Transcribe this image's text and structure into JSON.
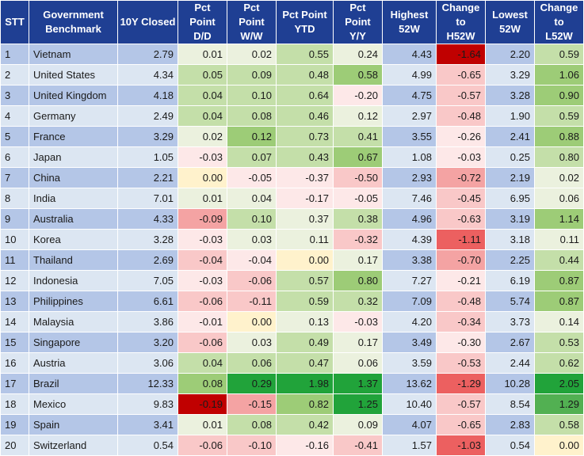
{
  "headers": {
    "stt": "STT",
    "benchmark_line1": "Government",
    "benchmark_line2": "Benchmark",
    "closed": "10Y Closed",
    "dd_line1": "Pct",
    "dd_line2": "Point",
    "dd_line3": "D/D",
    "ww_line1": "Pct",
    "ww_line2": "Point",
    "ww_line3": "W/W",
    "ytd_line1": "Pct Point",
    "ytd_line2": "YTD",
    "yy_line1": "Pct",
    "yy_line2": "Point",
    "yy_line3": "Y/Y",
    "h52_line1": "Highest",
    "h52_line2": "52W",
    "ch52_line1": "Change",
    "ch52_line2": "to",
    "ch52_line3": "H52W",
    "l52_line1": "Lowest",
    "l52_line2": "52W",
    "cl52_line1": "Change to",
    "cl52_line2": "L52W"
  },
  "rows": [
    {
      "stt": "1",
      "name": "Vietnam",
      "closed": "2.79",
      "dd": "0.01",
      "ww": "0.02",
      "ytd": "0.55",
      "yy": "0.24",
      "h52": "4.43",
      "ch52": "-1.64",
      "l52": "2.20",
      "cl52": "0.59"
    },
    {
      "stt": "2",
      "name": "United States",
      "closed": "4.34",
      "dd": "0.05",
      "ww": "0.09",
      "ytd": "0.48",
      "yy": "0.58",
      "h52": "4.99",
      "ch52": "-0.65",
      "l52": "3.29",
      "cl52": "1.06"
    },
    {
      "stt": "3",
      "name": "United Kingdom",
      "closed": "4.18",
      "dd": "0.04",
      "ww": "0.10",
      "ytd": "0.64",
      "yy": "-0.20",
      "h52": "4.75",
      "ch52": "-0.57",
      "l52": "3.28",
      "cl52": "0.90"
    },
    {
      "stt": "4",
      "name": "Germany",
      "closed": "2.49",
      "dd": "0.04",
      "ww": "0.08",
      "ytd": "0.46",
      "yy": "0.12",
      "h52": "2.97",
      "ch52": "-0.48",
      "l52": "1.90",
      "cl52": "0.59"
    },
    {
      "stt": "5",
      "name": "France",
      "closed": "3.29",
      "dd": "0.02",
      "ww": "0.12",
      "ytd": "0.73",
      "yy": "0.41",
      "h52": "3.55",
      "ch52": "-0.26",
      "l52": "2.41",
      "cl52": "0.88"
    },
    {
      "stt": "6",
      "name": "Japan",
      "closed": "1.05",
      "dd": "-0.03",
      "ww": "0.07",
      "ytd": "0.43",
      "yy": "0.67",
      "h52": "1.08",
      "ch52": "-0.03",
      "l52": "0.25",
      "cl52": "0.80"
    },
    {
      "stt": "7",
      "name": "China",
      "closed": "2.21",
      "dd": "0.00",
      "ww": "-0.05",
      "ytd": "-0.37",
      "yy": "-0.50",
      "h52": "2.93",
      "ch52": "-0.72",
      "l52": "2.19",
      "cl52": "0.02"
    },
    {
      "stt": "8",
      "name": "India",
      "closed": "7.01",
      "dd": "0.01",
      "ww": "0.04",
      "ytd": "-0.17",
      "yy": "-0.05",
      "h52": "7.46",
      "ch52": "-0.45",
      "l52": "6.95",
      "cl52": "0.06"
    },
    {
      "stt": "9",
      "name": "Australia",
      "closed": "4.33",
      "dd": "-0.09",
      "ww": "0.10",
      "ytd": "0.37",
      "yy": "0.38",
      "h52": "4.96",
      "ch52": "-0.63",
      "l52": "3.19",
      "cl52": "1.14"
    },
    {
      "stt": "10",
      "name": "Korea",
      "closed": "3.28",
      "dd": "-0.03",
      "ww": "0.03",
      "ytd": "0.11",
      "yy": "-0.32",
      "h52": "4.39",
      "ch52": "-1.11",
      "l52": "3.18",
      "cl52": "0.11"
    },
    {
      "stt": "11",
      "name": "Thailand",
      "closed": "2.69",
      "dd": "-0.04",
      "ww": "-0.04",
      "ytd": "0.00",
      "yy": "0.17",
      "h52": "3.38",
      "ch52": "-0.70",
      "l52": "2.25",
      "cl52": "0.44"
    },
    {
      "stt": "12",
      "name": "Indonesia",
      "closed": "7.05",
      "dd": "-0.03",
      "ww": "-0.06",
      "ytd": "0.57",
      "yy": "0.80",
      "h52": "7.27",
      "ch52": "-0.21",
      "l52": "6.19",
      "cl52": "0.87"
    },
    {
      "stt": "13",
      "name": "Philippines",
      "closed": "6.61",
      "dd": "-0.06",
      "ww": "-0.11",
      "ytd": "0.59",
      "yy": "0.32",
      "h52": "7.09",
      "ch52": "-0.48",
      "l52": "5.74",
      "cl52": "0.87"
    },
    {
      "stt": "14",
      "name": "Malaysia",
      "closed": "3.86",
      "dd": "-0.01",
      "ww": "0.00",
      "ytd": "0.13",
      "yy": "-0.03",
      "h52": "4.20",
      "ch52": "-0.34",
      "l52": "3.73",
      "cl52": "0.14"
    },
    {
      "stt": "15",
      "name": "Singapore",
      "closed": "3.20",
      "dd": "-0.06",
      "ww": "0.03",
      "ytd": "0.49",
      "yy": "0.17",
      "h52": "3.49",
      "ch52": "-0.30",
      "l52": "2.67",
      "cl52": "0.53"
    },
    {
      "stt": "16",
      "name": "Austria",
      "closed": "3.06",
      "dd": "0.04",
      "ww": "0.06",
      "ytd": "0.47",
      "yy": "0.06",
      "h52": "3.59",
      "ch52": "-0.53",
      "l52": "2.44",
      "cl52": "0.62"
    },
    {
      "stt": "17",
      "name": "Brazil",
      "closed": "12.33",
      "dd": "0.08",
      "ww": "0.29",
      "ytd": "1.98",
      "yy": "1.37",
      "h52": "13.62",
      "ch52": "-1.29",
      "l52": "10.28",
      "cl52": "2.05"
    },
    {
      "stt": "18",
      "name": "Mexico",
      "closed": "9.83",
      "dd": "-0.19",
      "ww": "-0.15",
      "ytd": "0.82",
      "yy": "1.25",
      "h52": "10.40",
      "ch52": "-0.57",
      "l52": "8.54",
      "cl52": "1.29"
    },
    {
      "stt": "19",
      "name": "Spain",
      "closed": "3.41",
      "dd": "0.01",
      "ww": "0.08",
      "ytd": "0.42",
      "yy": "0.09",
      "h52": "4.07",
      "ch52": "-0.65",
      "l52": "2.83",
      "cl52": "0.58"
    },
    {
      "stt": "20",
      "name": "Switzerland",
      "closed": "0.54",
      "dd": "-0.06",
      "ww": "-0.10",
      "ytd": "-0.16",
      "yy": "-0.41",
      "h52": "1.57",
      "ch52": "-1.03",
      "l52": "0.54",
      "cl52": "0.00"
    }
  ],
  "colors": {
    "header_bg": "#1f3f93",
    "row_odd": "#b4c6e7",
    "row_even": "#dce6f2",
    "positive_scale": [
      "#ebf1de",
      "#c4dfa9",
      "#9dcc77",
      "#52b052",
      "#21a33a"
    ],
    "negative_scale": [
      "#fde8e8",
      "#f9c8c8",
      "#f4a3a3",
      "#ec6060",
      "#c00000"
    ],
    "neutral_zero": "#fff2cc"
  }
}
